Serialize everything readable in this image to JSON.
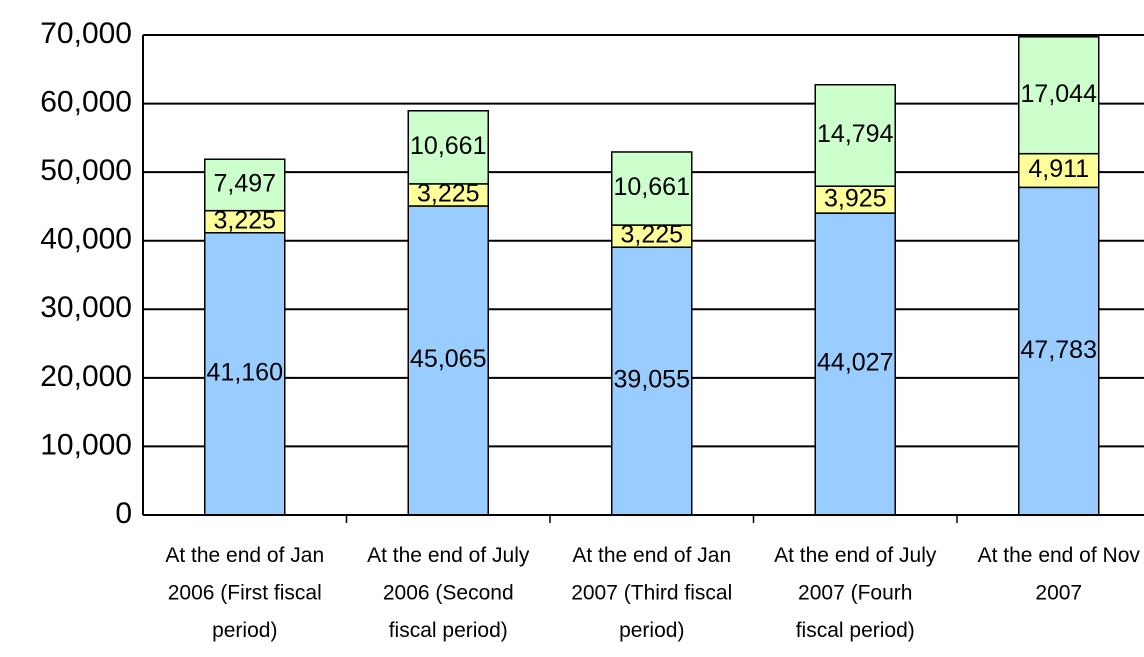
{
  "chart_data": {
    "type": "stacked_bar",
    "categories": [
      "At the end of Jan\n2006 (First fiscal\nperiod)",
      "At the end of July\n2006 (Second\nfiscal period)",
      "At the end of Jan\n2007 (Third fiscal\nperiod)",
      "At the end of July\n2007 (Fourh\nfiscal period)",
      "At the end of Nov\n2007"
    ],
    "series": [
      {
        "color": "#99ccff",
        "values": [
          41160,
          45065,
          39055,
          44027,
          47783
        ],
        "value_labels": [
          "41,160",
          "45,065",
          "39,055",
          "44,027",
          "47,783"
        ]
      },
      {
        "color": "#ffff99",
        "values": [
          3225,
          3225,
          3225,
          3925,
          4911
        ],
        "value_labels": [
          "3,225",
          "3,225",
          "3,225",
          "3,925",
          "4,911"
        ]
      },
      {
        "color": "#ccffcc",
        "values": [
          7497,
          10661,
          10661,
          14794,
          17044
        ],
        "value_labels": [
          "7,497",
          "10,661",
          "10,661",
          "14,794",
          "17,044"
        ]
      }
    ],
    "ylim": [
      0,
      70000
    ],
    "yticks": [
      0,
      {
        "value": 10000,
        "label": "10,000"
      },
      {
        "value": 20000,
        "label": "20,000"
      },
      {
        "value": 30000,
        "label": "30,000"
      },
      {
        "value": 40000,
        "label": "40,000"
      },
      {
        "value": 50000,
        "label": "50,000"
      },
      {
        "value": 60000,
        "label": "60,000"
      },
      {
        "value": 70000,
        "label": "70,000"
      }
    ],
    "grid": true
  }
}
